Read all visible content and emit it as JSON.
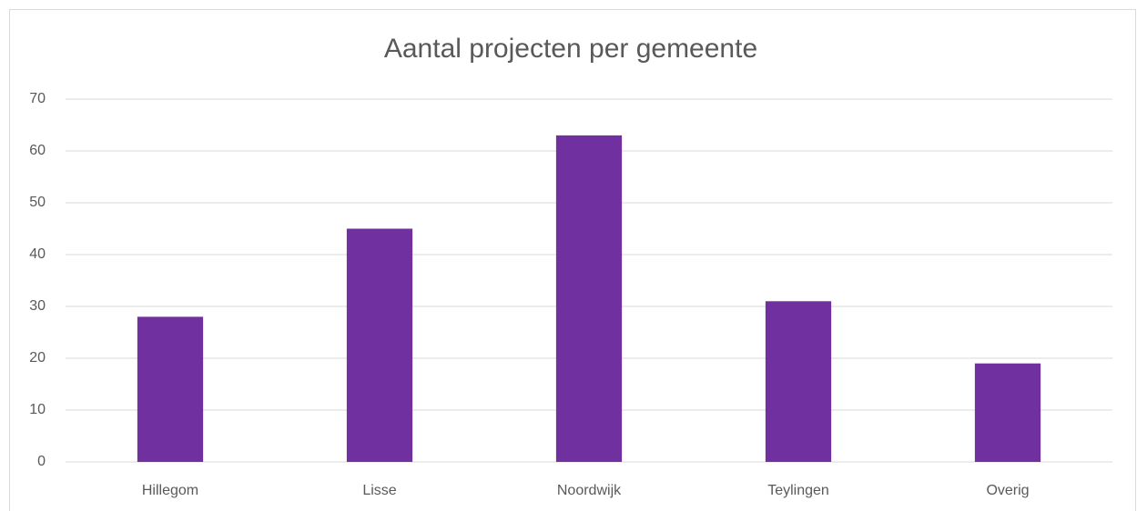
{
  "chart_data": {
    "type": "bar",
    "title": "Aantal projecten per gemeente",
    "categories": [
      "Hillegom",
      "Lisse",
      "Noordwijk",
      "Teylingen",
      "Overig"
    ],
    "values": [
      28,
      45,
      63,
      31,
      19
    ],
    "color": "#7030a0",
    "ylim": [
      0,
      70
    ],
    "yticks": [
      0,
      10,
      20,
      30,
      40,
      50,
      60,
      70
    ],
    "grid": true
  }
}
